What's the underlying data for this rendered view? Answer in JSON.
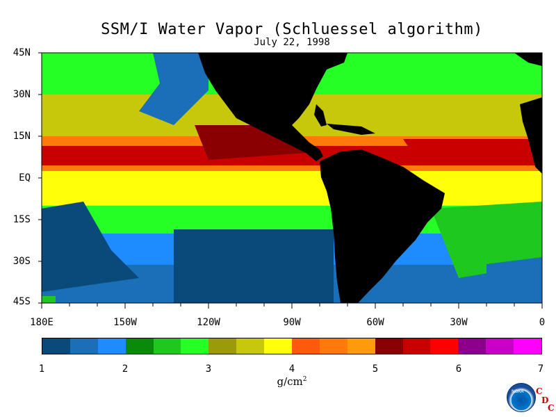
{
  "header": {
    "title": "SSM/I Water Vapor (Schluessel algorithm)",
    "date": "July 22, 1998"
  },
  "axes": {
    "latitude_labels": [
      "45N",
      "30N",
      "15N",
      "EQ",
      "15S",
      "30S",
      "45S"
    ],
    "longitude_labels": [
      "180E",
      "150W",
      "120W",
      "90W",
      "60W",
      "30W",
      "0"
    ]
  },
  "colorbar": {
    "tick_labels": [
      "1",
      "2",
      "3",
      "4",
      "5",
      "6",
      "7"
    ],
    "units": "g/cm",
    "units_exponent": "2",
    "colors": [
      "#0a4a7a",
      "#1a6fb8",
      "#1e8bff",
      "#0a8a0a",
      "#1ec81e",
      "#26ff26",
      "#9a9a0a",
      "#c8c80a",
      "#ffff0a",
      "#ff5a0a",
      "#ff7a0a",
      "#ff9a0a",
      "#8a0000",
      "#c80000",
      "#ff0000",
      "#8a008a",
      "#c800c8",
      "#ff00ff"
    ]
  },
  "map_colors": {
    "land": "#000000",
    "ocean_dry": "#0a4a7a",
    "ocean_low": "#1a6fb8",
    "ocean_mid": "#1ec81e",
    "ocean_moist": "#ff9a0a",
    "ocean_wet": "#8a0000"
  },
  "logo": {
    "agency": "NOAA",
    "letters": [
      "C",
      "D",
      "C"
    ]
  }
}
